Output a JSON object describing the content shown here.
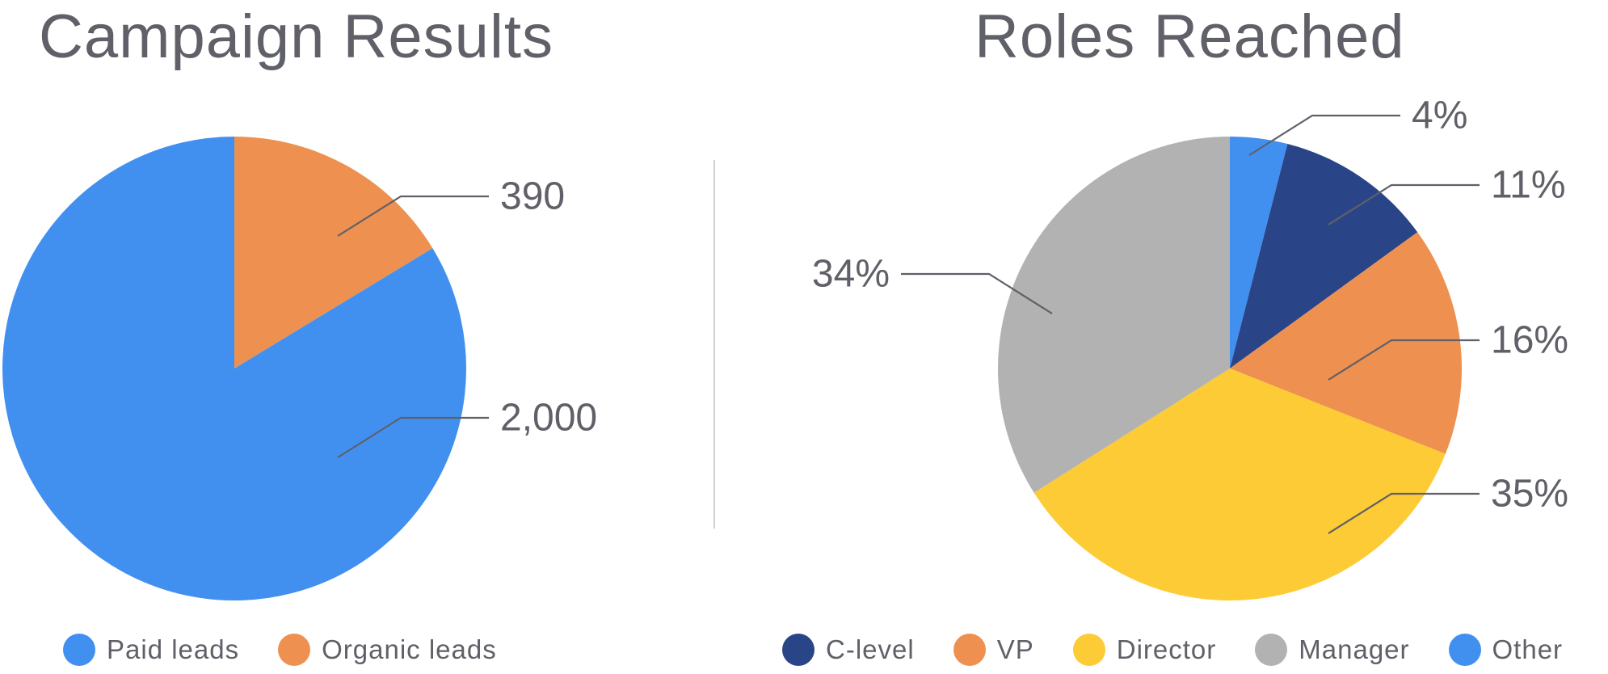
{
  "chart_data": [
    {
      "type": "pie",
      "title": "Campaign Results",
      "categories": [
        "Paid leads",
        "Organic leads"
      ],
      "values": [
        2000,
        390
      ],
      "value_labels": [
        "2,000",
        "390"
      ],
      "colors": [
        "#4190F0",
        "#EE9150"
      ],
      "legend_placement": "bottom"
    },
    {
      "type": "pie",
      "title": "Roles Reached",
      "categories": [
        "Other",
        "C-level",
        "VP",
        "Director",
        "Manager"
      ],
      "values": [
        4,
        11,
        16,
        35,
        34
      ],
      "value_labels": [
        "4%",
        "11%",
        "16%",
        "35%",
        "34%"
      ],
      "colors": [
        "#4190F0",
        "#2A4488",
        "#EE9150",
        "#FDCB35",
        "#B2B2B2"
      ],
      "legend_order": [
        "C-level",
        "VP",
        "Director",
        "Manager",
        "Other"
      ],
      "legend_placement": "bottom"
    }
  ]
}
